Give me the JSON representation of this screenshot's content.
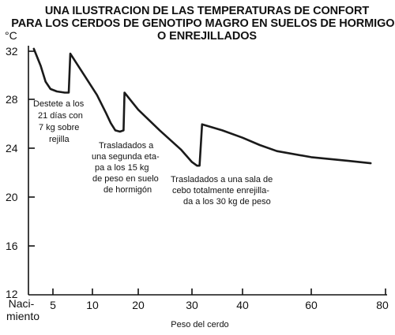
{
  "chart_data": {
    "type": "line",
    "title_lines": [
      "UNA ILUSTRACION DE LAS TEMPERATURAS DE CONFORT",
      "PARA LOS CERDOS DE GENOTIPO MAGRO EN SUELOS DE HORMIGON",
      "O ENREJILLADOS"
    ],
    "ylabel": "°C",
    "xlabel": "Peso del cerdo",
    "x_tick_labels": [
      "Naci-",
      "miento",
      "5",
      "10",
      "20",
      "30",
      "40",
      "60",
      "80"
    ],
    "y_tick_labels": [
      "32",
      "28",
      "24",
      "20",
      "16",
      "12"
    ],
    "annotations": [
      [
        "Destete a los",
        "21 días con",
        "7 kg sobre",
        "rejilla"
      ],
      [
        "Trasladados a",
        "una segunda eta-",
        "pa a los 15 kg",
        "de peso en suelo",
        "de hormigón"
      ],
      [
        "Trasladados a una sala de",
        "cebo totalmente enrejilla-",
        "da a los 30 kg de peso"
      ]
    ],
    "ylim": [
      12,
      32
    ],
    "grid": false,
    "series": [
      {
        "values": [
          {
            "x": 1.1,
            "y": 32.2
          },
          {
            "x": 2.5,
            "y": 30.8
          },
          {
            "x": 3.5,
            "y": 29.5
          },
          {
            "x": 4.5,
            "y": 28.9
          },
          {
            "x": 5.5,
            "y": 28.7
          },
          {
            "x": 6.5,
            "y": 28.6
          },
          {
            "x": 7.0,
            "y": 28.6
          },
          {
            "x": 7.2,
            "y": 31.8
          },
          {
            "x": 9.0,
            "y": 30.0
          },
          {
            "x": 11.0,
            "y": 28.4
          },
          {
            "x": 13.0,
            "y": 26.9
          },
          {
            "x": 14.0,
            "y": 26.1
          },
          {
            "x": 15.0,
            "y": 25.5
          },
          {
            "x": 16.0,
            "y": 25.4
          },
          {
            "x": 16.8,
            "y": 25.5
          },
          {
            "x": 17.0,
            "y": 28.6
          },
          {
            "x": 20.0,
            "y": 27.2
          },
          {
            "x": 24.0,
            "y": 25.5
          },
          {
            "x": 28.0,
            "y": 23.9
          },
          {
            "x": 30.0,
            "y": 22.9
          },
          {
            "x": 31.0,
            "y": 22.6
          },
          {
            "x": 31.5,
            "y": 22.6
          },
          {
            "x": 32.0,
            "y": 26.0
          },
          {
            "x": 36.0,
            "y": 25.5
          },
          {
            "x": 40.0,
            "y": 24.9
          },
          {
            "x": 45.0,
            "y": 24.3
          },
          {
            "x": 50.0,
            "y": 23.8
          },
          {
            "x": 60.0,
            "y": 23.3
          },
          {
            "x": 70.0,
            "y": 23.0
          },
          {
            "x": 76.0,
            "y": 22.8
          }
        ]
      }
    ]
  }
}
